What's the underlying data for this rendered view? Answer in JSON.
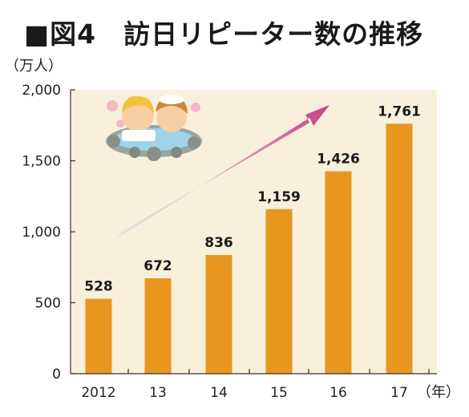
{
  "page": {
    "title": "■図4　訪日リピーター数の推移"
  },
  "chart_data": {
    "type": "bar",
    "title": "■図4　訪日リピーター数の推移",
    "ylabel": "（万人）",
    "xlabel": "（年）",
    "categories": [
      "2012",
      "13",
      "14",
      "15",
      "16",
      "17"
    ],
    "values": [
      528,
      672,
      836,
      1159,
      1426,
      1761
    ],
    "value_labels": [
      "528",
      "672",
      "836",
      "1,159",
      "1,426",
      "1,761"
    ],
    "ylim": [
      0,
      2000
    ],
    "yticks": [
      0,
      500,
      1000,
      1500,
      2000
    ],
    "ytick_labels": [
      "0",
      "500",
      "1,000",
      "1,500",
      "2,000"
    ],
    "grid": false,
    "colors": {
      "bar": "#E8961E",
      "plot_bg": "#F8F0DB",
      "arrow": "#C63E86"
    }
  }
}
